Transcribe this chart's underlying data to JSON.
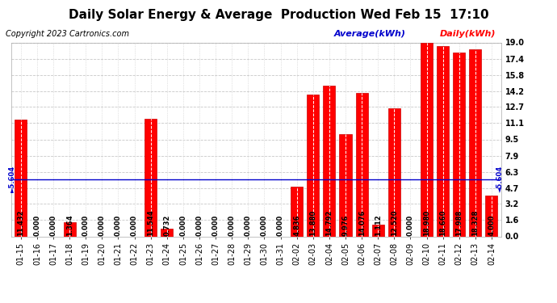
{
  "title": "Daily Solar Energy & Average  Production Wed Feb 15  17:10",
  "copyright": "Copyright 2023 Cartronics.com",
  "legend_average": "Average(kWh)",
  "legend_daily": "Daily(kWh)",
  "average_value": 5.604,
  "categories": [
    "01-15",
    "01-16",
    "01-17",
    "01-18",
    "01-19",
    "01-20",
    "01-21",
    "01-22",
    "01-23",
    "01-24",
    "01-25",
    "01-26",
    "01-27",
    "01-28",
    "01-29",
    "01-30",
    "01-31",
    "02-02",
    "02-03",
    "02-04",
    "02-05",
    "02-06",
    "02-07",
    "02-08",
    "02-09",
    "02-10",
    "02-11",
    "02-12",
    "02-13",
    "02-14"
  ],
  "values": [
    11.432,
    0.0,
    0.0,
    1.364,
    0.0,
    0.0,
    0.0,
    0.0,
    11.544,
    0.732,
    0.0,
    0.0,
    0.0,
    0.0,
    0.0,
    0.0,
    0.0,
    4.836,
    13.88,
    14.792,
    9.976,
    14.076,
    1.112,
    12.52,
    0.0,
    18.98,
    18.66,
    17.988,
    18.328,
    4.0
  ],
  "bar_color": "#ff0000",
  "bar_edge_color": "#cc0000",
  "avg_line_color": "#0000cc",
  "background_color": "#ffffff",
  "grid_color_dashed": "#c8c8c8",
  "grid_color_dotted": "#c8c8c8",
  "ylim": [
    0.0,
    19.0
  ],
  "yticks": [
    0.0,
    1.6,
    3.2,
    4.7,
    6.3,
    7.9,
    9.5,
    11.1,
    12.7,
    14.2,
    15.8,
    17.4,
    19.0
  ],
  "title_fontsize": 11,
  "copyright_fontsize": 7,
  "legend_fontsize": 8,
  "bar_label_fontsize": 6,
  "tick_fontsize": 7,
  "avg_label_fontsize": 6
}
